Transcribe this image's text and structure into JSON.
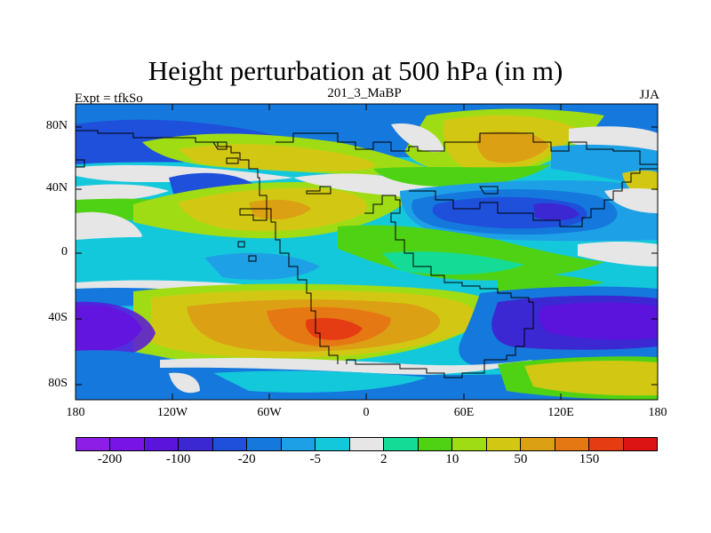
{
  "title": "Height perturbation at 500 hPa (in m)",
  "subtitle": {
    "left": "Expt = tfkSo",
    "center": "201_3_MaBP",
    "right": "JJA"
  },
  "lat_labels": [
    "80N",
    "40N",
    "0",
    "40S",
    "80S"
  ],
  "lon_labels": [
    "180",
    "120W",
    "60W",
    "0",
    "60E",
    "120E",
    "180"
  ],
  "colorbar": {
    "colors": [
      "#8c1ee6",
      "#7814e6",
      "#5a14dc",
      "#3c28d2",
      "#1e50dc",
      "#1478dc",
      "#1ea0e6",
      "#14c8dc",
      "#e6e6e6",
      "#14dc96",
      "#50d214",
      "#a0dc14",
      "#d2c814",
      "#dca014",
      "#e67814",
      "#e63c14",
      "#dc1414"
    ],
    "labels": [
      {
        "text": "-200",
        "index": 1
      },
      {
        "text": "-100",
        "index": 3
      },
      {
        "text": "-20",
        "index": 5
      },
      {
        "text": "-5",
        "index": 7
      },
      {
        "text": "2",
        "index": 9
      },
      {
        "text": "10",
        "index": 11
      },
      {
        "text": "50",
        "index": 13
      },
      {
        "text": "150",
        "index": 15
      }
    ]
  },
  "field_colors": {
    "violet": "#8c1ee6",
    "indigo": "#5a14dc",
    "blue": "#1e50dc",
    "midblue": "#1478dc",
    "lightblue": "#1ea0e6",
    "cyan": "#14c8dc",
    "grey": "#e6e6e6",
    "teal": "#14dc96",
    "green": "#50d214",
    "yellowgreen": "#a0dc14",
    "yellow": "#d2c814",
    "orange": "#dca014",
    "darkorange": "#e67814",
    "red": "#e63c14"
  }
}
